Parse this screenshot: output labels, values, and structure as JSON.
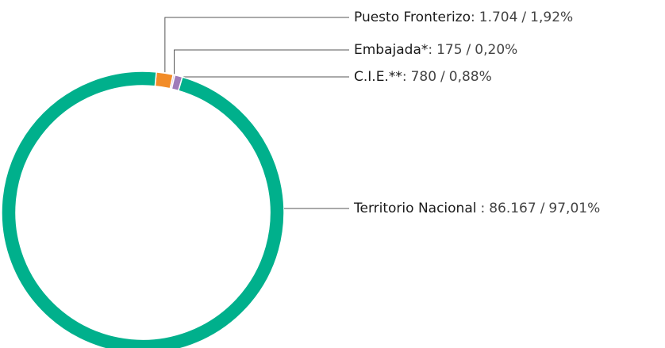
{
  "chart_data": {
    "type": "donut",
    "series": [
      {
        "name": "Puesto Fronterizo",
        "color": "#f28c28"
      },
      {
        "name": "Embajada*",
        "color": "#cdb8de"
      },
      {
        "name": "C.I.E.**",
        "color": "#9e7bb9"
      },
      {
        "name": "Territorio Nacional",
        "color": "#00b08c"
      }
    ],
    "values": [
      1704,
      175,
      780,
      86167
    ],
    "value_labels": [
      "1.704",
      "175",
      "780",
      "86.167"
    ],
    "percents": [
      1.92,
      0.2,
      0.88,
      97.01
    ],
    "percent_labels": [
      "1,92%",
      "0,20%",
      "0,88%",
      "97,01%"
    ],
    "separators": [
      ":",
      "/"
    ]
  }
}
